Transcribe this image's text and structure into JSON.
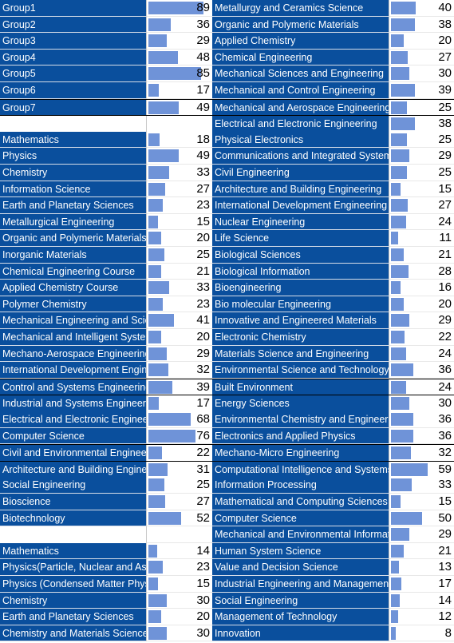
{
  "max_value": 100,
  "rows": [
    {
      "left": {
        "label": "Group1",
        "value": 89
      },
      "right": {
        "label": "Metallurgy and Ceramics Science",
        "value": 40
      }
    },
    {
      "left": {
        "label": "Group2",
        "value": 36
      },
      "right": {
        "label": "Organic and Polymeric Materials",
        "value": 38
      }
    },
    {
      "left": {
        "label": "Group3",
        "value": 29
      },
      "right": {
        "label": "Applied Chemistry",
        "value": 20
      }
    },
    {
      "left": {
        "label": "Group4",
        "value": 48
      },
      "right": {
        "label": "Chemical Engineering",
        "value": 27
      }
    },
    {
      "left": {
        "label": "Group5",
        "value": 85
      },
      "right": {
        "label": "Mechanical Sciences and Engineering",
        "value": 30
      }
    },
    {
      "left": {
        "label": "Group6",
        "value": 17
      },
      "right": {
        "label": "Mechanical and Control Engineering",
        "value": 39
      }
    },
    {
      "left": {
        "label": "Group7",
        "value": 49
      },
      "right": {
        "label": "Mechanical and Aerospace Engineering",
        "value": 25
      }
    },
    {
      "left": null,
      "right": {
        "label": "Electrical and Electronic Engineering",
        "value": 38
      }
    },
    {
      "left": {
        "label": "Mathematics",
        "value": 18
      },
      "right": {
        "label": "Physical Electronics",
        "value": 25
      }
    },
    {
      "left": {
        "label": "Physics",
        "value": 49
      },
      "right": {
        "label": "Communications and Integrated Systems",
        "value": 29
      }
    },
    {
      "left": {
        "label": "Chemistry",
        "value": 33
      },
      "right": {
        "label": "Civil Engineering",
        "value": 25
      }
    },
    {
      "left": {
        "label": "Information Science",
        "value": 27
      },
      "right": {
        "label": "Architecture and Building Engineering",
        "value": 15
      }
    },
    {
      "left": {
        "label": "Earth and Planetary Sciences",
        "value": 23
      },
      "right": {
        "label": "International Development Engineering",
        "value": 27
      }
    },
    {
      "left": {
        "label": "Metallurgical Engineering",
        "value": 15
      },
      "right": {
        "label": "Nuclear Engineering",
        "value": 24
      }
    },
    {
      "left": {
        "label": "Organic and Polymeric Materials",
        "value": 20
      },
      "right": {
        "label": "Life Science",
        "value": 11
      }
    },
    {
      "left": {
        "label": "Inorganic Materials",
        "value": 25
      },
      "right": {
        "label": "Biological Sciences",
        "value": 21
      }
    },
    {
      "left": {
        "label": "Chemical Engineering Course",
        "value": 21
      },
      "right": {
        "label": "Biological Information",
        "value": 28
      }
    },
    {
      "left": {
        "label": "Applied Chemistry Course",
        "value": 33
      },
      "right": {
        "label": "Bioengineering",
        "value": 16
      }
    },
    {
      "left": {
        "label": "Polymer Chemistry",
        "value": 23
      },
      "right": {
        "label": "Bio molecular Engineering",
        "value": 20
      }
    },
    {
      "left": {
        "label": "Mechanical Engineering and Science",
        "value": 41
      },
      "right": {
        "label": "Innovative and Engineered Materials",
        "value": 29
      }
    },
    {
      "left": {
        "label": "Mechanical and Intelligent Systems",
        "value": 20
      },
      "right": {
        "label": "Electronic Chemistry",
        "value": 22
      }
    },
    {
      "left": {
        "label": "Mechano-Aerospace Engineering",
        "value": 29
      },
      "right": {
        "label": "Materials Science and Engineering",
        "value": 24
      }
    },
    {
      "left": {
        "label": "International Development Engineering",
        "value": 32
      },
      "right": {
        "label": "Environmental Science and Technology",
        "value": 36
      }
    },
    {
      "left": {
        "label": "Control and Systems Engineering",
        "value": 39
      },
      "right": {
        "label": "Built Environment",
        "value": 24
      }
    },
    {
      "left": {
        "label": "Industrial and Systems Engineering",
        "value": 17
      },
      "right": {
        "label": "Energy Sciences",
        "value": 30
      }
    },
    {
      "left": {
        "label": "Electrical and Electronic Engineering",
        "value": 68
      },
      "right": {
        "label": "Environmental Chemistry and Engineering",
        "value": 36
      }
    },
    {
      "left": {
        "label": "Computer Science",
        "value": 76
      },
      "right": {
        "label": "Electronics and Applied Physics",
        "value": 36
      }
    },
    {
      "left": {
        "label": "Civil and Environmental Engineering",
        "value": 22
      },
      "right": {
        "label": "Mechano-Micro Engineering",
        "value": 32
      }
    },
    {
      "left": {
        "label": "Architecture and Building Engineering",
        "value": 31
      },
      "right": {
        "label": "Computational Intelligence and Systems Science",
        "value": 59
      }
    },
    {
      "left": {
        "label": "Social Engineering",
        "value": 25
      },
      "right": {
        "label": "Information Processing",
        "value": 33
      }
    },
    {
      "left": {
        "label": "Bioscience",
        "value": 27
      },
      "right": {
        "label": "Mathematical and Computing Sciences",
        "value": 15
      }
    },
    {
      "left": {
        "label": "Biotechnology",
        "value": 52
      },
      "right": {
        "label": "Computer Science",
        "value": 50
      }
    },
    {
      "left": null,
      "right": {
        "label": "Mechanical and Environmental Informatics",
        "value": 29
      }
    },
    {
      "left": {
        "label": "Mathematics",
        "value": 14
      },
      "right": {
        "label": "Human System Science",
        "value": 21
      }
    },
    {
      "left": {
        "label": "Physics(Particle, Nuclear and Astrophysics)",
        "value": 23
      },
      "right": {
        "label": "Value and Decision Science",
        "value": 13
      }
    },
    {
      "left": {
        "label": "Physics (Condensed Matter Physics)",
        "value": 15
      },
      "right": {
        "label": "Industrial Engineering and Management",
        "value": 17
      }
    },
    {
      "left": {
        "label": "Chemistry",
        "value": 30
      },
      "right": {
        "label": "Social Engineering",
        "value": 14
      }
    },
    {
      "left": {
        "label": "Earth and Planetary Sciences",
        "value": 20
      },
      "right": {
        "label": "Management of Technology",
        "value": 12
      }
    },
    {
      "left": {
        "label": "Chemistry and Materials Science",
        "value": 30
      },
      "right": {
        "label": "Innovation",
        "value": 8
      }
    }
  ]
}
